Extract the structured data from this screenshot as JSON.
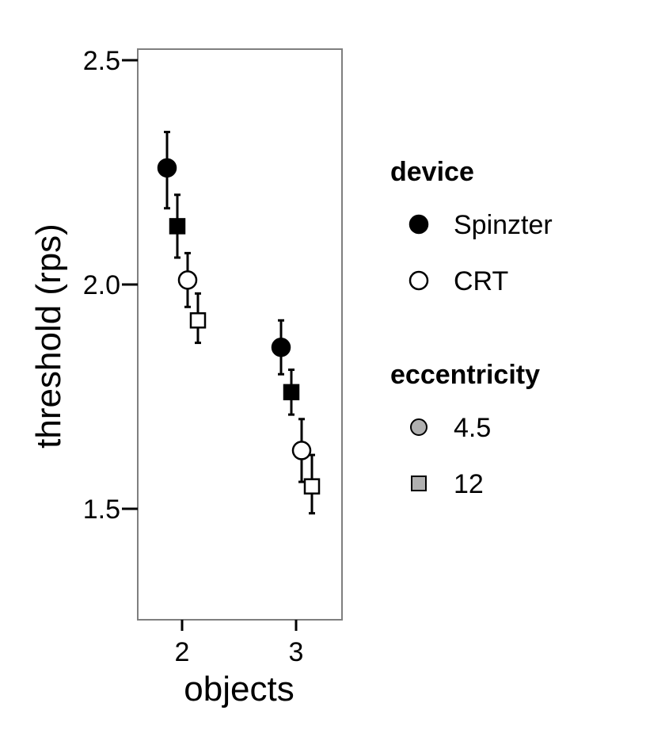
{
  "chart_data": {
    "type": "scatter",
    "title": "",
    "xlabel": "objects",
    "ylabel": "threshold (rps)",
    "x_categories": [
      "2",
      "3"
    ],
    "ylim": [
      1.25,
      2.52
    ],
    "yticks": [
      1.5,
      2.0,
      2.5
    ],
    "ytick_labels": [
      "1.5",
      "2.0",
      "2.5"
    ],
    "grid": false,
    "legend_placement": "right",
    "legend": {
      "device": {
        "title": "device",
        "items": [
          {
            "label": "Spinzter",
            "shape": "circle",
            "fill": "#000000"
          },
          {
            "label": "CRT",
            "shape": "circle",
            "fill": "#ffffff"
          }
        ]
      },
      "eccentricity": {
        "title": "eccentricity",
        "items": [
          {
            "label": "4.5",
            "shape": "circle",
            "fill": "#b0b0b0"
          },
          {
            "label": "12",
            "shape": "square",
            "fill": "#b0b0b0"
          }
        ]
      }
    },
    "points": [
      {
        "objects": "2",
        "device": "Spinzter",
        "eccentricity": "4.5",
        "y": 2.26,
        "ymin": 2.17,
        "ymax": 2.34
      },
      {
        "objects": "2",
        "device": "Spinzter",
        "eccentricity": "12",
        "y": 2.13,
        "ymin": 2.06,
        "ymax": 2.2
      },
      {
        "objects": "2",
        "device": "CRT",
        "eccentricity": "4.5",
        "y": 2.01,
        "ymin": 1.95,
        "ymax": 2.07
      },
      {
        "objects": "2",
        "device": "CRT",
        "eccentricity": "12",
        "y": 1.92,
        "ymin": 1.87,
        "ymax": 1.98
      },
      {
        "objects": "3",
        "device": "Spinzter",
        "eccentricity": "4.5",
        "y": 1.86,
        "ymin": 1.8,
        "ymax": 1.92
      },
      {
        "objects": "3",
        "device": "Spinzter",
        "eccentricity": "12",
        "y": 1.76,
        "ymin": 1.71,
        "ymax": 1.81
      },
      {
        "objects": "3",
        "device": "CRT",
        "eccentricity": "4.5",
        "y": 1.63,
        "ymin": 1.56,
        "ymax": 1.7
      },
      {
        "objects": "3",
        "device": "CRT",
        "eccentricity": "12",
        "y": 1.55,
        "ymin": 1.49,
        "ymax": 1.62
      }
    ]
  }
}
